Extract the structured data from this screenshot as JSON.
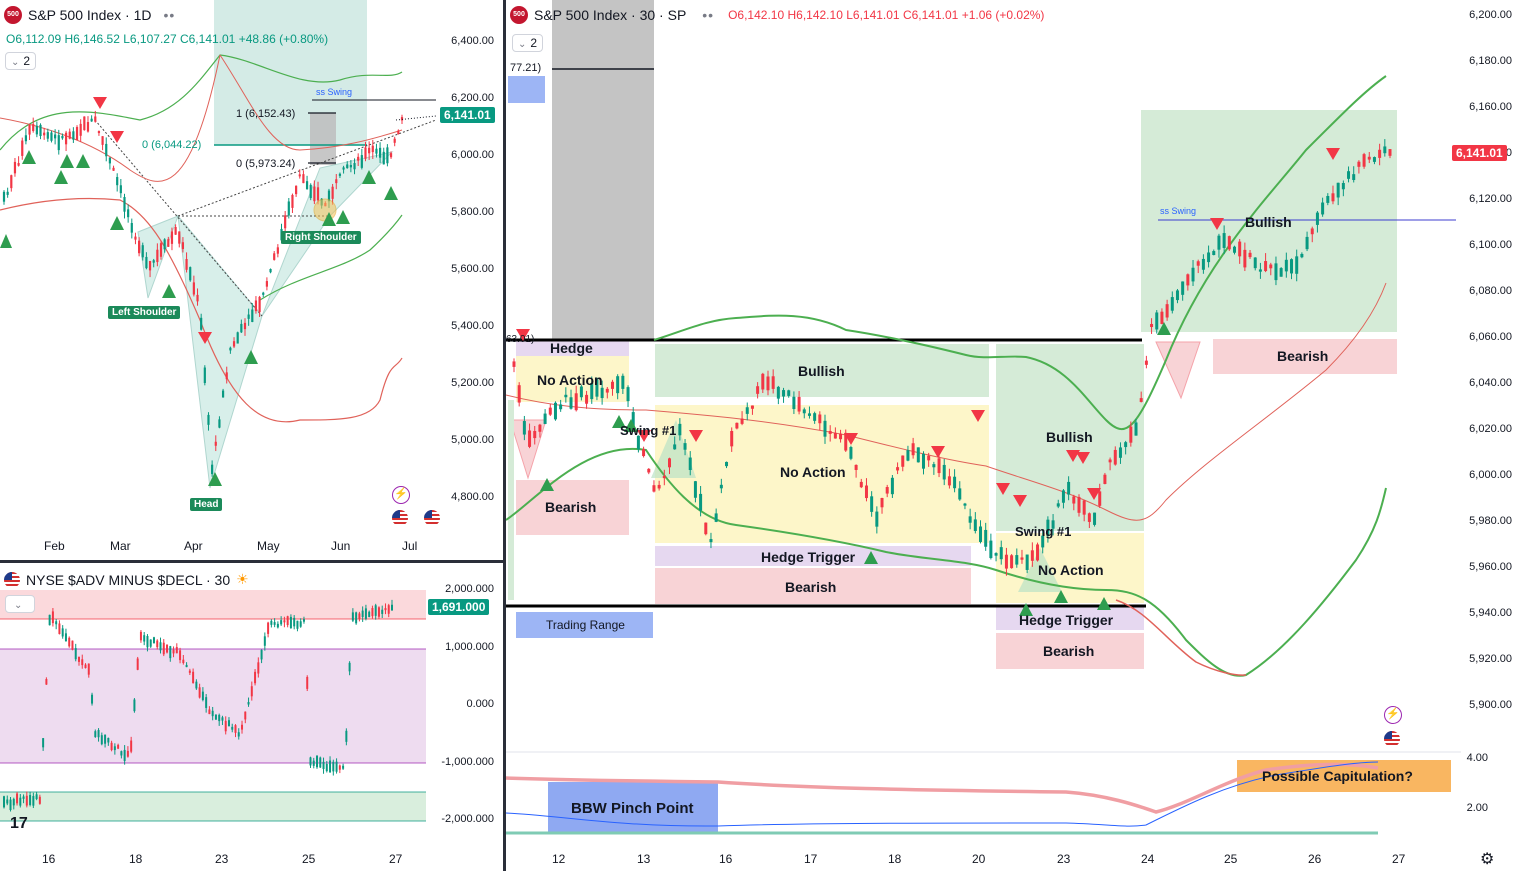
{
  "colors": {
    "up": "#089981",
    "down": "#f23645",
    "bullish_zone": "#d5ebd7",
    "bearish_zone": "#f8d3d6",
    "noaction_zone": "#fdf6c9",
    "hedge_zone": "#e6d8f0",
    "label_green": "#1b8a5a",
    "price_tag": "#089981",
    "price_tag_red": "#f23645"
  },
  "daily": {
    "title": "S&P 500 Index · 1D",
    "logo": "500",
    "ohlc": {
      "o": "O6,112.09",
      "h": "H6,146.52",
      "l": "L6,107.27",
      "c": "C6,141.01",
      "chg": "+48.86 (+0.80%)"
    },
    "layout_chip": "2",
    "price_tag": "6,141.01",
    "y_ticks": [
      "6,400.00",
      "6,200.00",
      "6,000.00",
      "5,800.00",
      "5,600.00",
      "5,400.00",
      "5,200.00",
      "5,000.00",
      "4,800.00"
    ],
    "x_ticks": [
      "Feb",
      "Mar",
      "Apr",
      "May",
      "Jun",
      "Jul"
    ],
    "labels": {
      "left_shoulder": "Left Shoulder",
      "head": "Head",
      "right_shoulder": "Right Shoulder"
    },
    "fib": {
      "one": "1 (6,152.43)",
      "zero_a": "0 (6,044.22)",
      "zero_b": "0 (5,973.24)"
    },
    "swing_label": "ss Swing"
  },
  "breadth": {
    "title": "NYSE $ADV MINUS $DECL · 30",
    "price_tag": "1,691.000",
    "y_ticks": [
      "2,000.000",
      "1,000.000",
      "0.000",
      "-1,000.000",
      "-2,000.000"
    ],
    "x_ticks": [
      "16",
      "18",
      "23",
      "25",
      "27"
    ]
  },
  "intraday": {
    "title": "S&P 500 Index · 30 · SP",
    "logo": "500",
    "ohlc": {
      "o": "O6,142.10",
      "h": "H6,142.10",
      "l": "L6,141.01",
      "c": "C6,141.01",
      "chg": "+1.06 (+0.02%)"
    },
    "layout_chip": "2",
    "price_tag": "6,141.01",
    "cut_label_top": "77.21)",
    "cut_label_mid": "63.01)",
    "y_ticks": [
      "6,200.00",
      "6,180.00",
      "6,160.00",
      "6,140.00",
      "6,120.00",
      "6,100.00",
      "6,080.00",
      "6,060.00",
      "6,040.00",
      "6,020.00",
      "6,000.00",
      "5,980.00",
      "5,960.00",
      "5,940.00",
      "5,920.00",
      "5,900.00"
    ],
    "x_ticks": [
      "12",
      "13",
      "16",
      "17",
      "18",
      "20",
      "23",
      "24",
      "25",
      "26",
      "27"
    ],
    "zones": {
      "hedge": "Hedge",
      "no_action_1": "No Action",
      "bearish_1": "Bearish",
      "swing_1": "Swing #1",
      "bullish_1": "Bullish",
      "no_action_2": "No Action",
      "hedge_trigger_1": "Hedge Trigger",
      "bearish_2": "Bearish",
      "trading_range": "Trading Range",
      "bullish_2": "Bullish",
      "swing_2": "Swing #1",
      "no_action_3": "No Action",
      "hedge_trigger_2": "Hedge Trigger",
      "bearish_3": "Bearish",
      "bullish_3": "Bullish",
      "bearish_4": "Bearish"
    },
    "swing_label": "ss Swing",
    "bbw": {
      "y_ticks": [
        "4.00",
        "2.00"
      ],
      "pinch": "BBW Pinch Point",
      "capitulation": "Possible Capitulation?"
    }
  },
  "chart_data": [
    {
      "type": "line",
      "title": "S&P 500 Index · 1D",
      "x": [
        "Feb",
        "Mar",
        "Apr",
        "May",
        "Jun",
        "Jul"
      ],
      "series": [
        {
          "name": "close",
          "values": [
            6040,
            5950,
            5580,
            5650,
            5930,
            6141
          ]
        }
      ],
      "ylim": [
        4700,
        6500
      ],
      "annotations": [
        "Left Shoulder",
        "Head",
        "Right Shoulder"
      ]
    },
    {
      "type": "line",
      "title": "NYSE $ADV MINUS $DECL · 30",
      "x": [
        "16",
        "18",
        "23",
        "25",
        "27"
      ],
      "series": [
        {
          "name": "breadth",
          "values": [
            -1500,
            -800,
            -400,
            -1100,
            1691
          ]
        }
      ],
      "ylim": [
        -2300,
        2300
      ]
    },
    {
      "type": "line",
      "title": "S&P 500 Index · 30 · SP",
      "x": [
        "12",
        "13",
        "16",
        "17",
        "18",
        "20",
        "23",
        "24",
        "25",
        "26",
        "27"
      ],
      "series": [
        {
          "name": "close",
          "values": [
            6050,
            6010,
            6040,
            6030,
            5985,
            5975,
            5960,
            6050,
            6100,
            6090,
            6141
          ]
        }
      ],
      "ylim": [
        5890,
        6205
      ]
    }
  ]
}
